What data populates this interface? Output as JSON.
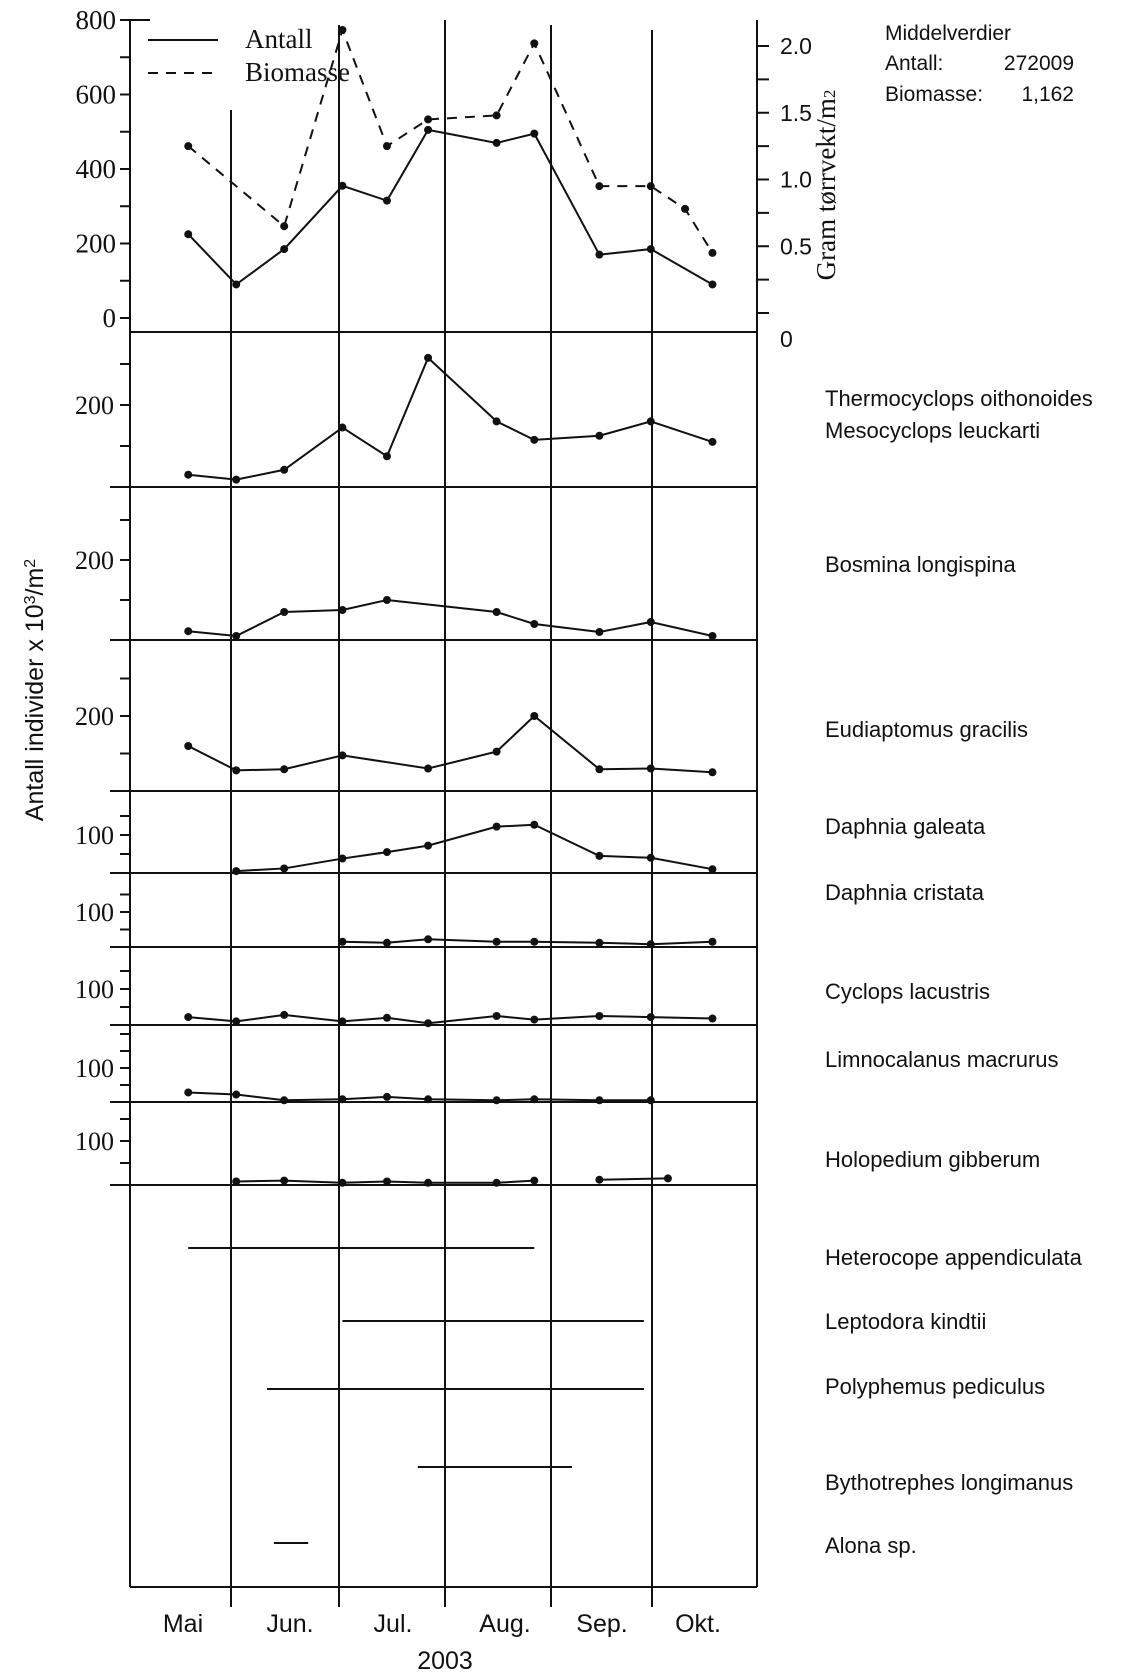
{
  "chart_data": {
    "type": "line",
    "year": "2003",
    "months": [
      "Mai",
      "Jun.",
      "Jul.",
      "Aug.",
      "Sep.",
      "Okt."
    ],
    "ylabel": "Antall individer x 10",
    "ylabel_sup": "3",
    "ylabel_tail": "/m",
    "ylabel_sup2": "2",
    "top_panel": {
      "left_ticks": [
        "800",
        "600",
        "400",
        "200",
        "0"
      ],
      "right_ticks": [
        "2.0",
        "1.5",
        "1.0",
        "0.5",
        "0"
      ],
      "right_label": "Gram tørrvekt/m",
      "right_label_sub": "2",
      "legend": [
        "Antall",
        "Biomasse"
      ],
      "mean_title": "Middelverdier",
      "mean_antall_label": "Antall:",
      "mean_antall_value": "272009",
      "mean_biomasse_label": "Biomasse:",
      "mean_biomasse_value": "1,162",
      "antall_dates": [
        "2003-05-18",
        "2003-06-01",
        "2003-06-15",
        "2003-07-02",
        "2003-07-15",
        "2003-07-27",
        "2003-08-16",
        "2003-08-27",
        "2003-09-15",
        "2003-09-30",
        "2003-10-18"
      ],
      "antall_values": [
        225,
        90,
        185,
        355,
        315,
        505,
        470,
        495,
        170,
        185,
        90
      ],
      "biomasse_dates": [
        "2003-05-18",
        "2003-06-15",
        "2003-07-02",
        "2003-07-15",
        "2003-07-27",
        "2003-08-16",
        "2003-08-27",
        "2003-09-15",
        "2003-09-30",
        "2003-10-10",
        "2003-10-18"
      ],
      "biomasse_values": [
        1.25,
        0.65,
        2.12,
        1.25,
        1.45,
        1.48,
        2.02,
        0.95,
        0.95,
        0.78,
        0.45
      ]
    },
    "species": [
      {
        "name": "Thermocyclops oithonoides",
        "name2": "Mesocyclops leuckarti",
        "tick": "200",
        "ymax": 300,
        "dates": [
          "2003-05-18",
          "2003-06-01",
          "2003-06-15",
          "2003-07-02",
          "2003-07-15",
          "2003-07-27",
          "2003-08-16",
          "2003-08-27",
          "2003-09-15",
          "2003-09-30",
          "2003-10-18"
        ],
        "values": [
          30,
          18,
          42,
          145,
          75,
          315,
          160,
          115,
          125,
          160,
          110
        ]
      },
      {
        "name": "Bosmina longispina",
        "tick": "200",
        "ymax": 300,
        "dates": [
          "2003-05-18",
          "2003-06-01",
          "2003-06-15",
          "2003-07-02",
          "2003-07-15",
          "2003-08-16",
          "2003-08-27",
          "2003-09-15",
          "2003-09-30",
          "2003-10-18"
        ],
        "values": [
          22,
          10,
          70,
          75,
          100,
          70,
          40,
          20,
          45,
          10
        ]
      },
      {
        "name": "Eudiaptomus gracilis",
        "tick": "200",
        "ymax": 300,
        "dates": [
          "2003-05-18",
          "2003-06-01",
          "2003-06-15",
          "2003-07-02",
          "2003-07-27",
          "2003-08-16",
          "2003-08-27",
          "2003-09-15",
          "2003-09-30",
          "2003-10-18"
        ],
        "values": [
          120,
          55,
          58,
          95,
          60,
          105,
          200,
          58,
          60,
          50
        ]
      },
      {
        "name": "Daphnia galeata",
        "tick": "100",
        "ymax": 150,
        "dates": [
          "2003-06-01",
          "2003-06-15",
          "2003-07-02",
          "2003-07-15",
          "2003-07-27",
          "2003-08-16",
          "2003-08-27",
          "2003-09-15",
          "2003-09-30",
          "2003-10-18"
        ],
        "values": [
          5,
          12,
          38,
          55,
          72,
          122,
          127,
          45,
          40,
          10
        ]
      },
      {
        "name": "Daphnia cristata",
        "tick": "100",
        "ymax": 150,
        "dates": [
          "2003-07-02",
          "2003-07-15",
          "2003-07-27",
          "2003-08-16",
          "2003-08-27",
          "2003-09-15",
          "2003-09-30",
          "2003-10-18"
        ],
        "values": [
          15,
          12,
          22,
          15,
          15,
          12,
          8,
          15
        ]
      },
      {
        "name": "Cyclops lacustris",
        "tick": "100",
        "ymax": 150,
        "dates": [
          "2003-05-18",
          "2003-06-01",
          "2003-06-15",
          "2003-07-02",
          "2003-07-15",
          "2003-07-27",
          "2003-08-16",
          "2003-08-27",
          "2003-09-15",
          "2003-09-30",
          "2003-10-18"
        ],
        "values": [
          22,
          10,
          28,
          10,
          20,
          5,
          25,
          15,
          25,
          22,
          18
        ]
      },
      {
        "name": "Limnocalanus macrurus",
        "tick": "100",
        "ymax": 150,
        "dates": [
          "2003-05-18",
          "2003-06-01",
          "2003-06-15",
          "2003-07-02",
          "2003-07-15",
          "2003-07-27",
          "2003-08-16",
          "2003-08-27",
          "2003-09-15",
          "2003-09-30"
        ],
        "values": [
          28,
          22,
          5,
          8,
          15,
          8,
          5,
          8,
          5,
          5
        ]
      },
      {
        "name": "Holopedium gibberum",
        "tick": "100",
        "ymax": 150,
        "segments": [
          {
            "dates": [
              "2003-06-01",
              "2003-06-15",
              "2003-07-02",
              "2003-07-15",
              "2003-07-27",
              "2003-08-16",
              "2003-08-27"
            ],
            "values": [
              8,
              10,
              5,
              8,
              5,
              5,
              10
            ]
          },
          {
            "dates": [
              "2003-09-15",
              "2003-10-05"
            ],
            "values": [
              12,
              15
            ]
          }
        ]
      }
    ],
    "presence": [
      {
        "name": "Heterocope appendiculata",
        "start": "2003-05-18",
        "end": "2003-08-27"
      },
      {
        "name": "Leptodora kindtii",
        "start": "2003-07-02",
        "end": "2003-09-28"
      },
      {
        "name": "Polyphemus pediculus",
        "start": "2003-06-10",
        "end": "2003-09-28"
      },
      {
        "name": "Bythotrephes longimanus",
        "start": "2003-07-24",
        "end": "2003-09-07"
      },
      {
        "name": "Alona sp.",
        "start": "2003-06-12",
        "end": "2003-06-22"
      }
    ]
  }
}
